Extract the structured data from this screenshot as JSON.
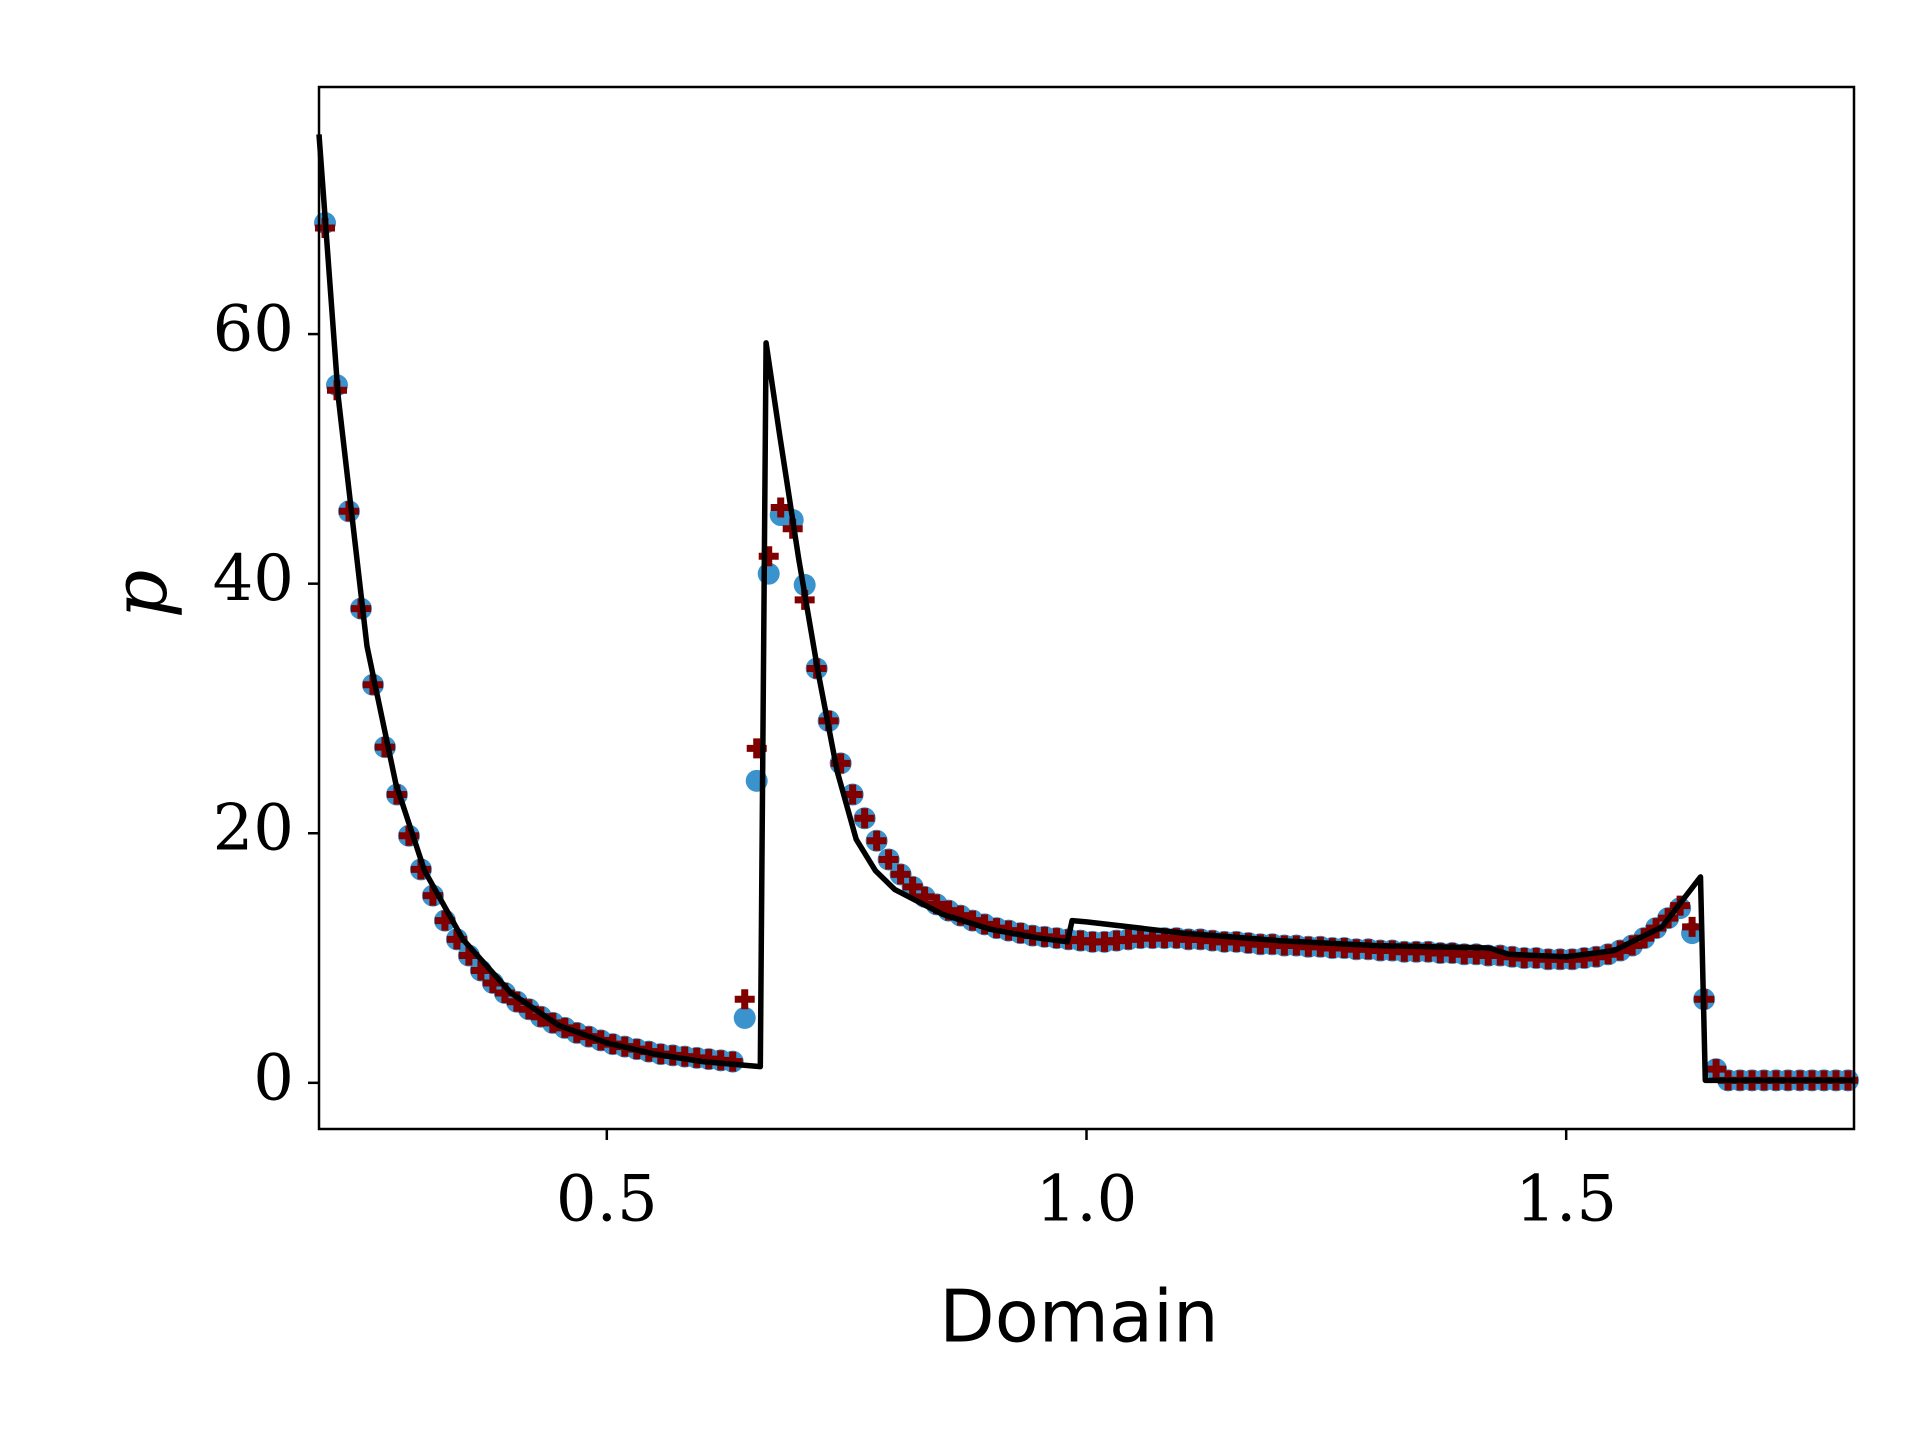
{
  "chart_data": {
    "type": "scatter",
    "xlabel": "Domain",
    "ylabel": "p",
    "xlim": [
      0.2,
      1.8
    ],
    "ylim": [
      -3.7,
      79.8
    ],
    "xticks": [
      0.5,
      {
        "value": 1,
        "label": "1.0"
      },
      1.5
    ],
    "yticks": [
      0,
      20,
      40,
      60
    ],
    "x": [
      0.20625,
      0.21875,
      0.23125,
      0.24375,
      0.25625,
      0.26875,
      0.28125,
      0.29375,
      0.30625,
      0.31875,
      0.33125,
      0.34375,
      0.35625,
      0.36875,
      0.38125,
      0.39375,
      0.40625,
      0.41875,
      0.43125,
      0.44375,
      0.45625,
      0.46875,
      0.48125,
      0.49375,
      0.50625,
      0.51875,
      0.53125,
      0.54375,
      0.55625,
      0.56875,
      0.58125,
      0.59375,
      0.60625,
      0.61875,
      0.63125,
      0.64375,
      0.65625,
      0.66875,
      0.68125,
      0.69375,
      0.70625,
      0.71875,
      0.73125,
      0.74375,
      0.75625,
      0.76875,
      0.78125,
      0.79375,
      0.80625,
      0.81875,
      0.83125,
      0.84375,
      0.85625,
      0.86875,
      0.88125,
      0.89375,
      0.90625,
      0.91875,
      0.93125,
      0.94375,
      0.95625,
      0.96875,
      0.98125,
      0.99375,
      1.00625,
      1.01875,
      1.03125,
      1.04375,
      1.05625,
      1.06875,
      1.08125,
      1.09375,
      1.10625,
      1.11875,
      1.13125,
      1.14375,
      1.15625,
      1.16875,
      1.18125,
      1.19375,
      1.20625,
      1.21875,
      1.23125,
      1.24375,
      1.25625,
      1.26875,
      1.28125,
      1.29375,
      1.30625,
      1.31875,
      1.33125,
      1.34375,
      1.35625,
      1.36875,
      1.38125,
      1.39375,
      1.40625,
      1.41875,
      1.43125,
      1.44375,
      1.45625,
      1.46875,
      1.48125,
      1.49375,
      1.50625,
      1.51875,
      1.53125,
      1.54375,
      1.55625,
      1.56875,
      1.58125,
      1.59375,
      1.60625,
      1.61875,
      1.63125,
      1.64375,
      1.65625,
      1.66875,
      1.68125,
      1.69375,
      1.70625,
      1.71875,
      1.73125,
      1.74375,
      1.75625,
      1.76875,
      1.78125,
      1.79375
    ],
    "series": [
      {
        "type": "scatter",
        "marker": "circle",
        "color": "#3a93cc",
        "values": [
          68.9,
          55.9,
          45.8,
          38.0,
          31.9,
          26.9,
          23.1,
          19.8,
          17.1,
          15.0,
          13.0,
          11.5,
          10.2,
          9.0,
          8.0,
          7.2,
          6.5,
          5.9,
          5.3,
          4.8,
          4.4,
          4.0,
          3.7,
          3.4,
          3.1,
          2.9,
          2.7,
          2.5,
          2.3,
          2.2,
          2.1,
          2.0,
          1.9,
          1.8,
          1.7,
          5.2,
          24.2,
          40.8,
          45.5,
          45.1,
          39.9,
          33.2,
          29.0,
          25.6,
          23.1,
          21.2,
          19.4,
          17.9,
          16.7,
          15.7,
          14.9,
          14.3,
          13.8,
          13.4,
          13.0,
          12.7,
          12.4,
          12.2,
          12.0,
          11.8,
          11.7,
          11.6,
          11.5,
          11.4,
          11.3,
          11.3,
          11.4,
          11.5,
          11.6,
          11.6,
          11.6,
          11.6,
          11.5,
          11.5,
          11.4,
          11.3,
          11.3,
          11.2,
          11.1,
          11.1,
          11.0,
          11.0,
          10.9,
          10.9,
          10.8,
          10.8,
          10.7,
          10.7,
          10.6,
          10.6,
          10.5,
          10.5,
          10.5,
          10.4,
          10.4,
          10.3,
          10.3,
          10.2,
          10.2,
          10.1,
          10.0,
          10.0,
          9.9,
          9.9,
          9.9,
          10.0,
          10.1,
          10.3,
          10.6,
          11.0,
          11.6,
          12.4,
          13.2,
          14.0,
          12.0,
          6.7,
          1.1,
          0.2,
          0.2,
          0.2,
          0.2,
          0.2,
          0.2,
          0.2,
          0.2,
          0.2,
          0.2,
          0.2
        ]
      },
      {
        "type": "scatter",
        "marker": "plus",
        "color": "#800000",
        "values": [
          68.5,
          55.5,
          45.8,
          38.0,
          31.9,
          26.9,
          23.1,
          19.8,
          17.1,
          15.0,
          13.0,
          11.5,
          10.2,
          9.0,
          8.0,
          7.2,
          6.5,
          5.9,
          5.3,
          4.8,
          4.4,
          4.0,
          3.7,
          3.4,
          3.1,
          2.9,
          2.7,
          2.5,
          2.3,
          2.2,
          2.1,
          2.0,
          1.9,
          1.8,
          1.7,
          6.7,
          26.8,
          42.2,
          46.1,
          44.4,
          38.7,
          33.2,
          29.0,
          25.6,
          23.1,
          21.2,
          19.4,
          17.9,
          16.7,
          15.7,
          14.9,
          14.3,
          13.8,
          13.4,
          13.0,
          12.7,
          12.4,
          12.2,
          12.0,
          11.8,
          11.7,
          11.6,
          11.5,
          11.4,
          11.3,
          11.3,
          11.4,
          11.5,
          11.6,
          11.6,
          11.6,
          11.6,
          11.5,
          11.5,
          11.4,
          11.3,
          11.3,
          11.2,
          11.1,
          11.1,
          11.0,
          11.0,
          10.9,
          10.9,
          10.8,
          10.8,
          10.7,
          10.7,
          10.6,
          10.6,
          10.5,
          10.5,
          10.5,
          10.4,
          10.4,
          10.3,
          10.3,
          10.2,
          10.2,
          10.1,
          10.0,
          10.0,
          9.9,
          9.9,
          9.9,
          10.0,
          10.1,
          10.3,
          10.6,
          11.0,
          11.6,
          12.4,
          13.2,
          14.2,
          12.5,
          6.7,
          1.1,
          0.2,
          0.2,
          0.2,
          0.2,
          0.2,
          0.2,
          0.2,
          0.2,
          0.2,
          0.2,
          0.2
        ]
      },
      {
        "type": "line",
        "color": "#000000",
        "x": [
          0.2,
          0.22,
          0.25,
          0.28,
          0.31,
          0.35,
          0.4,
          0.45,
          0.5,
          0.55,
          0.6,
          0.66,
          0.666,
          0.68,
          0.7,
          0.72,
          0.74,
          0.76,
          0.78,
          0.8,
          0.85,
          0.9,
          0.95,
          0.98,
          0.985,
          1.0,
          1.1,
          1.2,
          1.3,
          1.42,
          1.44,
          1.5,
          1.55,
          1.6,
          1.64,
          1.645,
          1.8
        ],
        "values": [
          76,
          55,
          35,
          24,
          17,
          11.5,
          7.2,
          4.6,
          3.2,
          2.3,
          1.7,
          1.3,
          59.3,
          52,
          42,
          33,
          25,
          19.5,
          17,
          15.5,
          13.5,
          12.3,
          11.6,
          11.3,
          13.0,
          12.9,
          12.0,
          11.4,
          11.0,
          10.8,
          10.3,
          10.1,
          10.6,
          12.5,
          16.5,
          0.2,
          0.2
        ]
      }
    ]
  }
}
